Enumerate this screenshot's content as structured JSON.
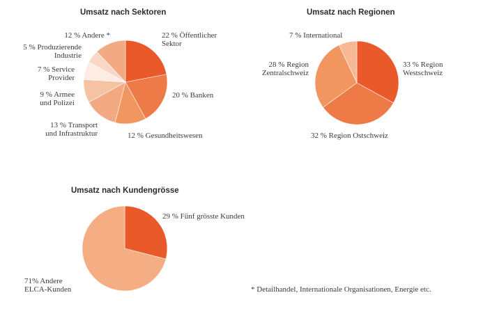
{
  "colors": {
    "c1": "#e9592a",
    "c2": "#ee7a47",
    "c3": "#f19660",
    "c4": "#f3a981",
    "c5": "#f6c2a4",
    "c6": "#f8d8c4",
    "c7": "#fcece2",
    "c8": "#f6b994",
    "c71": "#f5ad84"
  },
  "chart_data": [
    {
      "type": "pie",
      "title": "Umsatz nach Sektoren",
      "slices": [
        {
          "label": "22% Öffentlicher Sektor",
          "lines": [
            "22 % Öffentlicher",
            "Sektor"
          ],
          "value": 22,
          "color": "#e9592a"
        },
        {
          "label": "20% Banken",
          "lines": [
            "20 % Banken"
          ],
          "value": 20,
          "color": "#ee7a47"
        },
        {
          "label": "12% Gesundheitswesen",
          "lines": [
            "12 % Gesundheitswesen"
          ],
          "value": 12,
          "color": "#f19660"
        },
        {
          "label": "13% Transport und Infrastruktur",
          "lines": [
            "13 % Transport",
            "und Infrastruktur"
          ],
          "value": 13,
          "color": "#f3a981"
        },
        {
          "label": "9% Armee und Polizei",
          "lines": [
            "9 % Armee",
            "und Polizei"
          ],
          "value": 9,
          "color": "#f6c2a4"
        },
        {
          "label": "7% Service Provider",
          "lines": [
            "7 % Service",
            "Provider"
          ],
          "value": 7,
          "color": "#fcece2"
        },
        {
          "label": "5% Produzierende Industrie",
          "lines": [
            "5 % Produzierende",
            "Industrie"
          ],
          "value": 5,
          "color": "#f8d8c4"
        },
        {
          "label": "12% Andere *",
          "lines": [
            "12 % Andere *"
          ],
          "value": 12,
          "color": "#f3a981"
        }
      ]
    },
    {
      "type": "pie",
      "title": "Umsatz nach Regionen",
      "slices": [
        {
          "label": "33% Region Westschweiz",
          "lines": [
            "33 % Region",
            "Westschweiz"
          ],
          "value": 33,
          "color": "#e9592a"
        },
        {
          "label": "32% Region Ostschweiz",
          "lines": [
            "32 % Region Ostschweiz"
          ],
          "value": 32,
          "color": "#ee7a47"
        },
        {
          "label": "28% Region Zentralschweiz",
          "lines": [
            "28 % Region",
            "Zentralschweiz"
          ],
          "value": 28,
          "color": "#f19660"
        },
        {
          "label": "7% International",
          "lines": [
            "7 % International"
          ],
          "value": 7,
          "color": "#f6b994"
        }
      ]
    },
    {
      "type": "pie",
      "title": "Umsatz nach Kundengrösse",
      "slices": [
        {
          "label": "29% Fünf grösste Kunden",
          "lines": [
            "29 % Fünf grösste Kunden"
          ],
          "value": 29,
          "color": "#e9592a"
        },
        {
          "label": "71% Andere ELCA-Kunden",
          "lines": [
            "71% Andere",
            "ELCA-Kunden"
          ],
          "value": 71,
          "color": "#f5ad84"
        }
      ]
    }
  ],
  "footnote": "* Detailhandel, Internationale Organisationen, Energie etc."
}
